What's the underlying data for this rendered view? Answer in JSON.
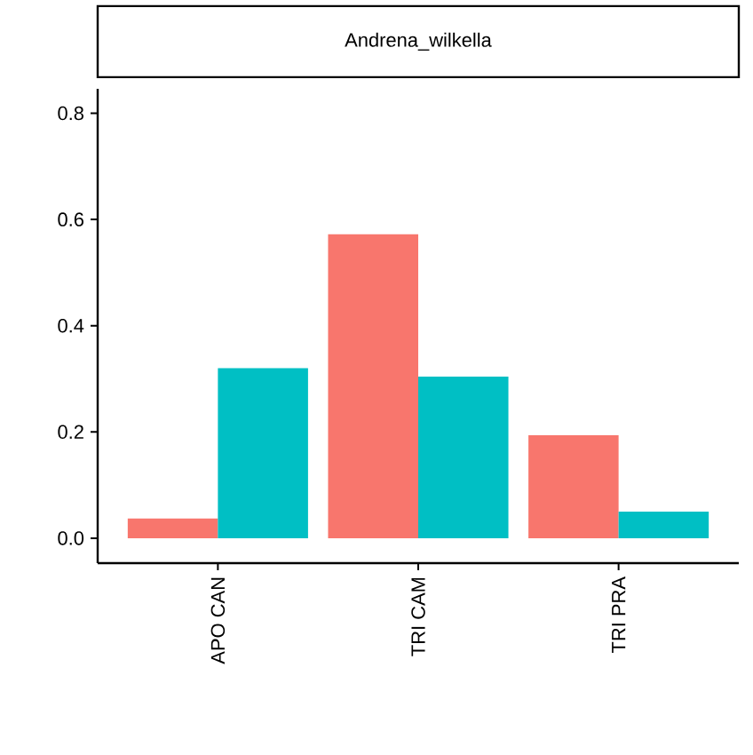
{
  "chart_data": {
    "type": "bar",
    "title": "Andrena_wilkella",
    "categories": [
      "APO CAN",
      "TRI CAM",
      "TRI PRA"
    ],
    "series": [
      {
        "color": "#f8766d",
        "values": [
          0.037,
          0.572,
          0.194
        ]
      },
      {
        "color": "#00bfc4",
        "values": [
          0.32,
          0.304,
          0.05
        ]
      }
    ],
    "ylim": [
      -0.047,
      0.846
    ],
    "yticks": [
      {
        "value": 0,
        "label": "0.0"
      },
      {
        "value": 0.2,
        "label": "0.2"
      },
      {
        "value": 0.4,
        "label": "0.4"
      },
      {
        "value": 0.6,
        "label": "0.6"
      },
      {
        "value": 0.8,
        "label": "0.8"
      }
    ]
  }
}
